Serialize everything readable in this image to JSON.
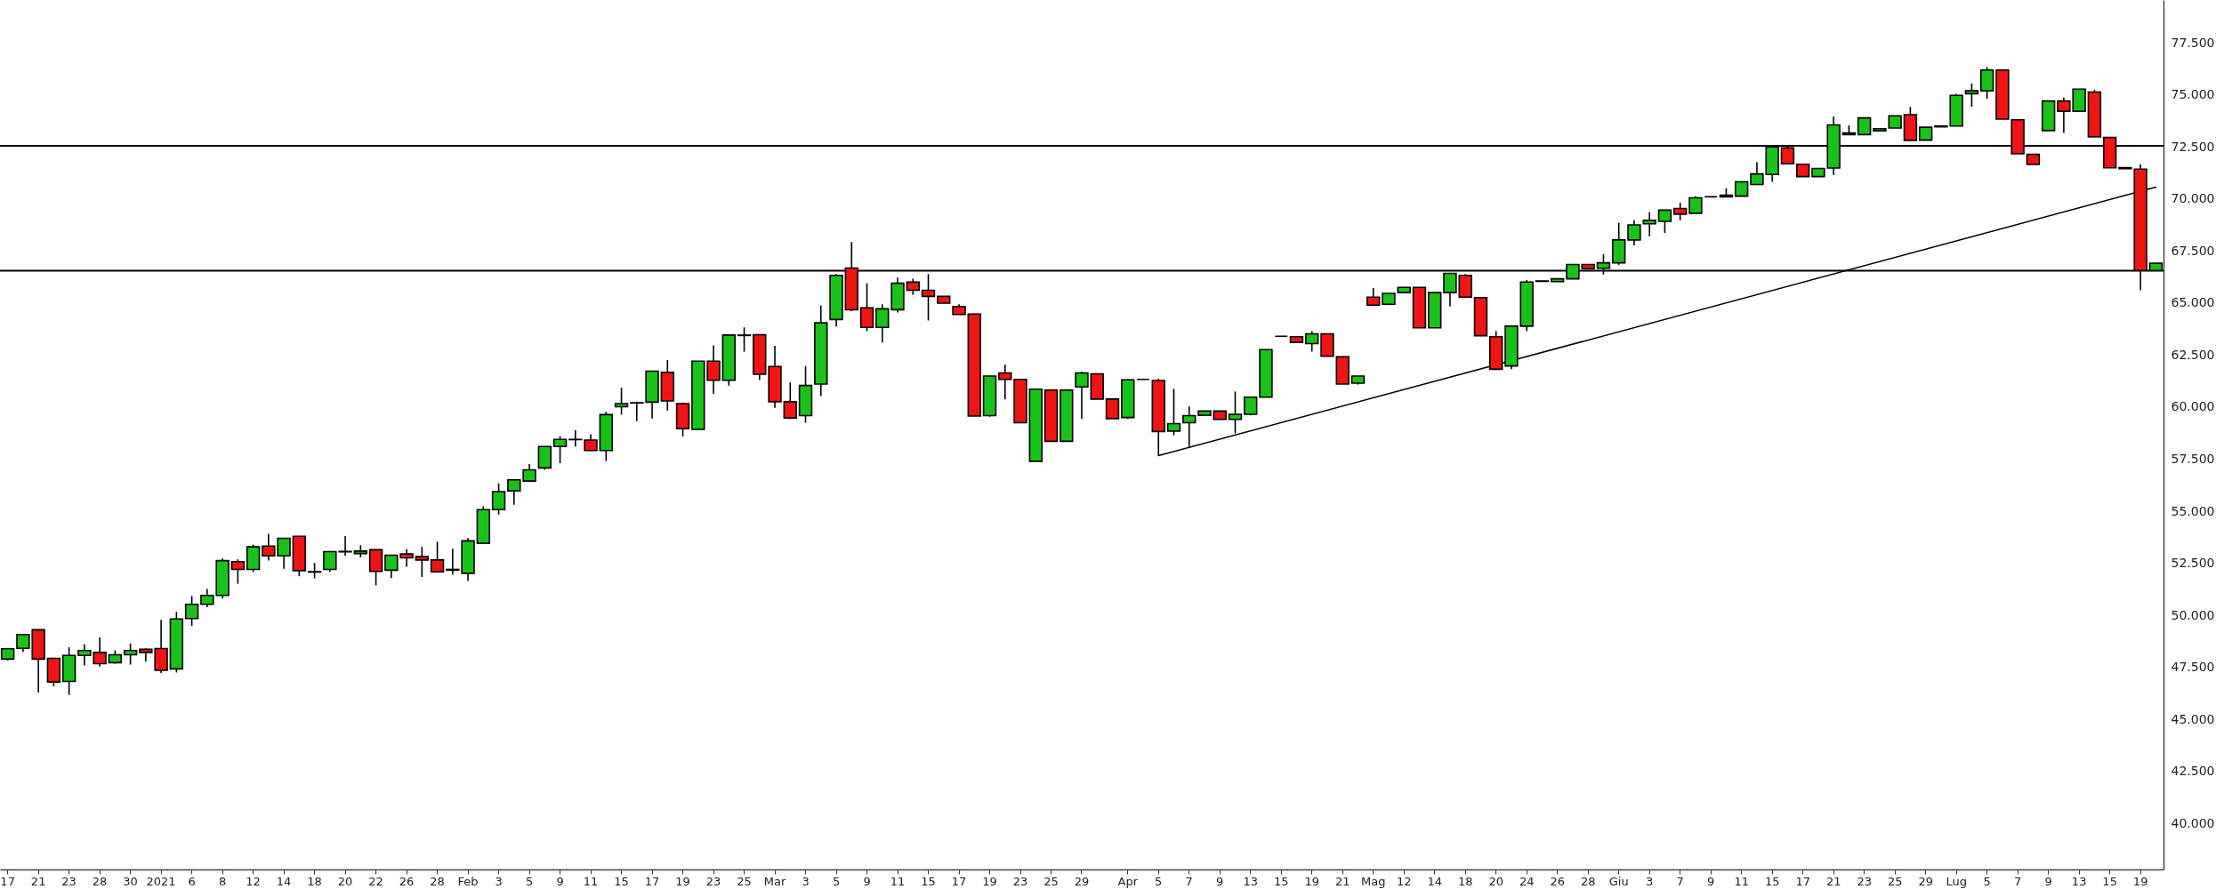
{
  "chart_data": {
    "type": "candlestick",
    "categories": [
      "17",
      null,
      "21",
      null,
      "23",
      null,
      "28",
      null,
      "30",
      null,
      "2021",
      null,
      "6",
      null,
      "8",
      null,
      "12",
      null,
      "14",
      null,
      "18",
      null,
      "20",
      null,
      "22",
      null,
      "26",
      null,
      "28",
      null,
      "Feb",
      null,
      "3",
      null,
      "5",
      null,
      "9",
      null,
      "11",
      null,
      "15",
      null,
      "17",
      null,
      "19",
      null,
      "23",
      null,
      "25",
      null,
      "Mar",
      null,
      "3",
      null,
      "5",
      null,
      "9",
      null,
      "11",
      null,
      "15",
      null,
      "17",
      null,
      "19",
      null,
      "23",
      null,
      "25",
      null,
      "29",
      null,
      null,
      "Apr",
      null,
      "5",
      null,
      "7",
      null,
      "9",
      null,
      "13",
      null,
      "15",
      null,
      "19",
      null,
      "21",
      null,
      "Mag",
      null,
      "12",
      null,
      "14",
      null,
      "18",
      null,
      "20",
      null,
      "24",
      null,
      "26",
      null,
      "28",
      null,
      "Giu",
      null,
      "3",
      null,
      "7",
      null,
      "9",
      null,
      "11",
      null,
      "15",
      null,
      "17",
      null,
      "21",
      null,
      "23",
      null,
      "25",
      null,
      "29",
      null,
      "Lug",
      null,
      "5",
      null,
      "7",
      null,
      "9",
      null,
      "13",
      null,
      "15",
      null,
      "19",
      null
    ],
    "ohlc": [
      [
        47.9,
        48.42,
        47.83,
        48.4
      ],
      [
        48.42,
        49.1,
        48.25,
        49.08
      ],
      [
        49.31,
        49.31,
        46.29,
        47.9
      ],
      [
        47.94,
        47.94,
        46.6,
        46.8
      ],
      [
        46.83,
        48.47,
        46.18,
        48.08
      ],
      [
        48.08,
        48.61,
        47.6,
        48.31
      ],
      [
        48.22,
        48.94,
        47.54,
        47.68
      ],
      [
        47.73,
        48.32,
        47.68,
        48.11
      ],
      [
        48.11,
        48.65,
        47.64,
        48.31
      ],
      [
        48.37,
        48.42,
        47.78,
        48.22
      ],
      [
        48.41,
        49.79,
        47.23,
        47.36
      ],
      [
        47.43,
        50.17,
        47.26,
        49.83
      ],
      [
        49.85,
        50.93,
        49.49,
        50.53
      ],
      [
        50.53,
        51.27,
        50.39,
        50.96
      ],
      [
        50.96,
        52.73,
        50.81,
        52.63
      ],
      [
        52.58,
        52.69,
        51.52,
        52.21
      ],
      [
        52.21,
        53.4,
        52.09,
        53.29
      ],
      [
        53.33,
        53.91,
        52.63,
        52.86
      ],
      [
        52.86,
        53.7,
        52.24,
        53.7
      ],
      [
        53.8,
        53.8,
        51.88,
        52.15
      ],
      [
        52.08,
        52.52,
        51.78,
        52.1
      ],
      [
        52.21,
        53.09,
        52.09,
        53.06
      ],
      [
        53.05,
        53.81,
        52.86,
        53.07
      ],
      [
        52.97,
        53.37,
        52.78,
        53.09
      ],
      [
        53.15,
        53.15,
        51.44,
        52.11
      ],
      [
        52.17,
        52.9,
        51.79,
        52.89
      ],
      [
        52.95,
        53.18,
        52.34,
        52.76
      ],
      [
        52.82,
        53.29,
        51.84,
        52.66
      ],
      [
        52.66,
        53.54,
        52.05,
        52.09
      ],
      [
        52.17,
        53.2,
        51.96,
        52.21
      ],
      [
        52.02,
        53.71,
        51.65,
        53.58
      ],
      [
        53.46,
        55.24,
        53.46,
        55.08
      ],
      [
        55.08,
        56.34,
        54.84,
        55.94
      ],
      [
        55.98,
        56.55,
        55.31,
        56.51
      ],
      [
        56.45,
        57.27,
        56.45,
        56.99
      ],
      [
        57.08,
        58.11,
        56.99,
        58.11
      ],
      [
        58.11,
        58.61,
        57.31,
        58.45
      ],
      [
        58.44,
        58.89,
        58.11,
        58.45
      ],
      [
        58.42,
        58.7,
        57.88,
        57.92
      ],
      [
        57.92,
        59.77,
        57.41,
        59.64
      ],
      [
        60.02,
        60.93,
        59.64,
        60.17
      ],
      [
        60.2,
        60.26,
        59.33,
        60.21
      ],
      [
        60.24,
        61.73,
        59.45,
        61.73
      ],
      [
        61.67,
        62.26,
        59.83,
        60.3
      ],
      [
        60.17,
        60.21,
        58.59,
        58.97
      ],
      [
        58.93,
        62.21,
        58.89,
        62.21
      ],
      [
        62.21,
        62.97,
        60.64,
        61.29
      ],
      [
        61.29,
        63.46,
        61.03,
        63.46
      ],
      [
        63.44,
        63.83,
        62.66,
        63.46
      ],
      [
        63.48,
        63.5,
        61.31,
        61.58
      ],
      [
        61.95,
        62.94,
        59.97,
        60.26
      ],
      [
        60.26,
        61.19,
        59.43,
        59.48
      ],
      [
        59.59,
        61.98,
        59.25,
        61.04
      ],
      [
        61.11,
        64.88,
        60.53,
        64.05
      ],
      [
        64.21,
        66.39,
        63.87,
        66.33
      ],
      [
        66.68,
        67.93,
        64.61,
        64.68
      ],
      [
        64.77,
        65.95,
        63.65,
        63.83
      ],
      [
        63.83,
        64.94,
        63.11,
        64.72
      ],
      [
        64.68,
        66.22,
        64.54,
        65.95
      ],
      [
        66.0,
        66.17,
        65.39,
        65.61
      ],
      [
        65.61,
        66.39,
        64.16,
        65.32
      ],
      [
        65.32,
        65.32,
        64.99,
        64.99
      ],
      [
        64.83,
        64.94,
        64.45,
        64.45
      ],
      [
        64.47,
        64.47,
        59.57,
        59.57
      ],
      [
        59.59,
        61.49,
        59.54,
        61.49
      ],
      [
        61.64,
        62.04,
        60.37,
        61.33
      ],
      [
        61.33,
        61.33,
        59.25,
        59.25
      ],
      [
        57.4,
        60.86,
        57.4,
        60.86
      ],
      [
        60.82,
        60.82,
        58.36,
        58.36
      ],
      [
        58.36,
        60.82,
        58.36,
        60.82
      ],
      [
        60.97,
        61.71,
        59.43,
        61.64
      ],
      [
        61.6,
        61.6,
        60.39,
        60.39
      ],
      [
        60.39,
        60.39,
        59.45,
        59.45
      ],
      [
        59.5,
        61.35,
        59.43,
        61.31
      ],
      [
        61.33,
        61.33,
        61.33,
        61.33
      ],
      [
        61.28,
        61.37,
        57.67,
        58.83
      ],
      [
        58.85,
        60.88,
        58.65,
        59.21
      ],
      [
        59.25,
        60.03,
        58.07,
        59.59
      ],
      [
        59.61,
        59.83,
        59.59,
        59.81
      ],
      [
        59.81,
        59.81,
        59.41,
        59.41
      ],
      [
        59.41,
        60.75,
        58.74,
        59.66
      ],
      [
        59.66,
        60.48,
        59.61,
        60.48
      ],
      [
        60.48,
        62.76,
        60.48,
        62.76
      ],
      [
        63.4,
        63.4,
        63.4,
        63.4
      ],
      [
        63.38,
        63.38,
        63.11,
        63.11
      ],
      [
        63.05,
        63.65,
        62.67,
        63.52
      ],
      [
        63.52,
        63.52,
        62.44,
        62.44
      ],
      [
        62.42,
        62.42,
        61.11,
        61.11
      ],
      [
        61.15,
        61.49,
        61.08,
        61.49
      ],
      [
        65.28,
        65.72,
        64.9,
        64.9
      ],
      [
        64.94,
        65.46,
        64.9,
        65.46
      ],
      [
        65.5,
        65.75,
        65.5,
        65.75
      ],
      [
        65.75,
        65.75,
        63.81,
        63.81
      ],
      [
        63.81,
        65.5,
        63.81,
        65.5
      ],
      [
        65.5,
        66.42,
        64.83,
        66.42
      ],
      [
        66.33,
        66.39,
        65.28,
        65.28
      ],
      [
        65.26,
        65.26,
        63.43,
        63.43
      ],
      [
        63.38,
        63.65,
        61.82,
        61.82
      ],
      [
        61.98,
        63.89,
        61.82,
        63.89
      ],
      [
        63.89,
        66.1,
        63.65,
        66.01
      ],
      [
        66.04,
        66.06,
        66.04,
        66.06
      ],
      [
        66.03,
        66.16,
        66.03,
        66.16
      ],
      [
        66.16,
        66.85,
        66.16,
        66.85
      ],
      [
        66.85,
        66.85,
        66.65,
        66.65
      ],
      [
        66.67,
        67.34,
        66.37,
        66.93
      ],
      [
        66.93,
        68.85,
        66.83,
        68.03
      ],
      [
        68.03,
        68.97,
        67.77,
        68.75
      ],
      [
        68.8,
        69.36,
        68.21,
        68.97
      ],
      [
        68.92,
        69.46,
        68.36,
        69.46
      ],
      [
        69.54,
        69.82,
        68.97,
        69.26
      ],
      [
        69.31,
        70.13,
        69.31,
        70.05
      ],
      [
        70.1,
        70.1,
        70.1,
        70.1
      ],
      [
        70.1,
        70.51,
        70.1,
        70.18
      ],
      [
        70.13,
        70.82,
        70.13,
        70.82
      ],
      [
        70.69,
        71.76,
        70.69,
        71.2
      ],
      [
        71.17,
        72.5,
        70.82,
        72.5
      ],
      [
        72.45,
        72.53,
        71.69,
        71.69
      ],
      [
        71.66,
        71.66,
        71.07,
        71.07
      ],
      [
        71.07,
        71.46,
        71.07,
        71.46
      ],
      [
        71.48,
        73.96,
        71.15,
        73.55
      ],
      [
        73.17,
        73.53,
        73.09,
        73.09
      ],
      [
        73.09,
        73.89,
        73.09,
        73.89
      ],
      [
        73.27,
        73.37,
        73.27,
        73.37
      ],
      [
        73.4,
        73.99,
        73.4,
        73.99
      ],
      [
        74.04,
        74.42,
        72.81,
        72.81
      ],
      [
        72.82,
        73.44,
        72.82,
        73.44
      ],
      [
        73.46,
        73.5,
        73.46,
        73.5
      ],
      [
        73.5,
        75.05,
        73.5,
        74.97
      ],
      [
        75.05,
        75.54,
        74.42,
        75.19
      ],
      [
        75.19,
        76.33,
        74.81,
        76.19
      ],
      [
        76.19,
        76.19,
        73.83,
        73.83
      ],
      [
        73.8,
        73.8,
        72.17,
        72.17
      ],
      [
        72.14,
        72.14,
        71.65,
        71.65
      ],
      [
        73.28,
        74.7,
        73.28,
        74.7
      ],
      [
        74.7,
        74.86,
        73.17,
        74.21
      ],
      [
        74.21,
        75.27,
        74.21,
        75.27
      ],
      [
        75.13,
        75.24,
        72.98,
        72.98
      ],
      [
        72.95,
        72.95,
        71.49,
        71.49
      ],
      [
        71.5,
        71.5,
        71.45,
        71.45
      ],
      [
        71.43,
        71.65,
        65.61,
        66.56
      ],
      [
        66.56,
        66.91,
        66.56,
        66.91
      ]
    ],
    "colors": [
      "#19c219",
      "#19c219",
      "#f01414",
      "#f01414",
      "#19c219",
      "#19c219",
      "#f01414",
      "#19c219",
      "#19c219",
      "#f01414",
      "#f01414",
      "#19c219",
      "#19c219",
      "#19c219",
      "#19c219",
      "#f01414",
      "#19c219",
      "#f01414",
      "#19c219",
      "#f01414",
      "#19c219",
      "#19c219",
      "#19c219",
      "#19c219",
      "#f01414",
      "#19c219",
      "#f01414",
      "#f01414",
      "#f01414",
      "#19c219",
      "#19c219",
      "#19c219",
      "#19c219",
      "#19c219",
      "#19c219",
      "#19c219",
      "#19c219",
      "#19c219",
      "#f01414",
      "#19c219",
      "#19c219",
      "#19c219",
      "#19c219",
      "#f01414",
      "#f01414",
      "#19c219",
      "#f01414",
      "#19c219",
      "#19c219",
      "#f01414",
      "#f01414",
      "#f01414",
      "#19c219",
      "#19c219",
      "#19c219",
      "#f01414",
      "#f01414",
      "#19c219",
      "#19c219",
      "#f01414",
      "#f01414",
      "#f01414",
      "#f01414",
      "#f01414",
      "#19c219",
      "#f01414",
      "#f01414",
      "#19c219",
      "#f01414",
      "#19c219",
      "#19c219",
      "#f01414",
      "#f01414",
      "#19c219",
      "#000000",
      "#f01414",
      "#19c219",
      "#19c219",
      "#19c219",
      "#f01414",
      "#19c219",
      "#19c219",
      "#19c219",
      "#000000",
      "#f01414",
      "#19c219",
      "#f01414",
      "#f01414",
      "#19c219",
      "#f01414",
      "#19c219",
      "#19c219",
      "#f01414",
      "#19c219",
      "#19c219",
      "#f01414",
      "#f01414",
      "#f01414",
      "#19c219",
      "#19c219",
      "#19c219",
      "#19c219",
      "#19c219",
      "#f01414",
      "#19c219",
      "#19c219",
      "#19c219",
      "#19c219",
      "#19c219",
      "#f01414",
      "#19c219",
      "#000000",
      "#19c219",
      "#19c219",
      "#19c219",
      "#19c219",
      "#f01414",
      "#f01414",
      "#19c219",
      "#19c219",
      "#f01414",
      "#19c219",
      "#19c219",
      "#19c219",
      "#f01414",
      "#19c219",
      "#19c219",
      "#19c219",
      "#19c219",
      "#19c219",
      "#f01414",
      "#f01414",
      "#f01414",
      "#19c219",
      "#f01414",
      "#19c219",
      "#f01414",
      "#f01414",
      "#f01414",
      "#f01414",
      "#19c219"
    ],
    "series": [
      {
        "type": "line",
        "color": "#000000",
        "values": [
          null,
          null,
          null,
          null,
          null,
          null,
          null,
          null,
          null,
          null,
          null,
          null,
          null,
          null,
          null,
          null,
          null,
          null,
          null,
          null,
          null,
          null,
          null,
          null,
          null,
          null,
          null,
          null,
          null,
          null,
          null,
          null,
          null,
          null,
          null,
          null,
          null,
          null,
          null,
          null,
          null,
          null,
          null,
          null,
          null,
          null,
          null,
          null,
          null,
          null,
          null,
          null,
          null,
          null,
          null,
          null,
          null,
          null,
          null,
          null,
          null,
          null,
          null,
          null,
          null,
          null,
          null,
          null,
          null,
          null,
          null,
          null,
          null,
          null,
          null,
          57.67,
          null,
          null,
          null,
          null,
          null,
          null,
          null,
          null,
          null,
          null,
          null,
          null,
          null,
          null,
          null,
          null,
          null,
          null,
          null,
          null,
          null,
          null,
          null,
          null,
          null,
          null,
          null,
          null,
          null,
          null,
          null,
          null,
          null,
          null,
          null,
          null,
          null,
          null,
          null,
          null,
          null,
          null,
          null,
          null,
          null,
          null,
          null,
          null,
          null,
          null,
          null,
          null,
          null,
          null,
          null,
          null,
          null,
          null,
          null,
          null,
          null,
          null,
          null,
          null,
          70.56
        ]
      }
    ],
    "ylim": [
      37.8,
      79.55
    ],
    "yticks": [
      {
        "value": 40,
        "label": "40.000"
      },
      {
        "value": 42.5,
        "label": "42.500"
      },
      {
        "value": 45,
        "label": "45.000"
      },
      {
        "value": 47.5,
        "label": "47.500"
      },
      {
        "value": 50,
        "label": "50.000"
      },
      {
        "value": 52.5,
        "label": "52.500"
      },
      {
        "value": 55,
        "label": "55.000"
      },
      {
        "value": 57.5,
        "label": "57.500"
      },
      {
        "value": 60,
        "label": "60.000"
      },
      {
        "value": 62.5,
        "label": "62.500"
      },
      {
        "value": 65,
        "label": "65.000"
      },
      {
        "value": 67.5,
        "label": "67.500"
      },
      {
        "value": 70,
        "label": "70.000"
      },
      {
        "value": 72.5,
        "label": "72.500"
      },
      {
        "value": 75,
        "label": "75.000"
      },
      {
        "value": 77.5,
        "label": "77.500"
      }
    ],
    "ref_lines": [
      {
        "axis": "y",
        "value": 72.55,
        "color": "#000000"
      },
      {
        "axis": "y",
        "value": 66.55,
        "color": "#000000"
      }
    ]
  }
}
